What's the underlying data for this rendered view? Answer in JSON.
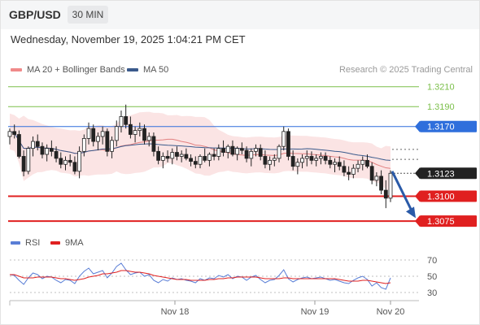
{
  "header": {
    "symbol": "GBP/USD",
    "timeframe": "30 MIN",
    "datetime": "Wednesday, November 19, 2025 1:04:21 PM CET"
  },
  "legend": {
    "ma20_label": "MA 20 + Bollinger Bands",
    "ma50_label": "MA 50",
    "credit": "Research © 2025 Trading Central",
    "rsi_label": "RSI",
    "rsi_ma_label": "9MA"
  },
  "colors": {
    "bull_candle": "#ffffff",
    "bear_candle": "#222222",
    "bollinger_fill": "#fbe4e4",
    "ma20": "#e28080",
    "ma50": "#3a5a8c",
    "resistance_green": "#7bbf4a",
    "pivot_blue": "#2f6fdc",
    "support_red": "#e02020",
    "arrow": "#2a5aa8",
    "rsi": "#5a7ed6",
    "rsi_ma": "#e02020"
  },
  "chart_data": [
    {
      "type": "candlestick",
      "title": "GBP/USD",
      "timeframe": "30 MIN",
      "x_ticks": [
        "Nov 18",
        "Nov 19",
        "Nov 20"
      ],
      "ylim": [
        1.3062,
        1.3222
      ],
      "levels": [
        {
          "label": "1.3210",
          "value": 1.321,
          "kind": "resistance"
        },
        {
          "label": "1.3190",
          "value": 1.319,
          "kind": "resistance"
        },
        {
          "label": "1.3170",
          "value": 1.317,
          "kind": "pivot"
        },
        {
          "label": "1.3123",
          "value": 1.3123,
          "kind": "last_price"
        },
        {
          "label": "1.3100",
          "value": 1.31,
          "kind": "support"
        },
        {
          "label": "1.3075",
          "value": 1.3075,
          "kind": "support"
        }
      ],
      "forecast_arrow": {
        "from": 1.3125,
        "to": 1.3078,
        "direction": "down"
      },
      "ohlc": [
        [
          1.316,
          1.3168,
          1.3152,
          1.3165
        ],
        [
          1.3165,
          1.3172,
          1.3158,
          1.3162
        ],
        [
          1.3162,
          1.3166,
          1.3138,
          1.314
        ],
        [
          1.314,
          1.3146,
          1.312,
          1.3125
        ],
        [
          1.3125,
          1.315,
          1.3122,
          1.3148
        ],
        [
          1.3148,
          1.316,
          1.314,
          1.3155
        ],
        [
          1.3155,
          1.3162,
          1.3146,
          1.315
        ],
        [
          1.315,
          1.3154,
          1.3138,
          1.3142
        ],
        [
          1.3142,
          1.3152,
          1.3135,
          1.3148
        ],
        [
          1.3148,
          1.3156,
          1.314,
          1.3145
        ],
        [
          1.3145,
          1.315,
          1.3134,
          1.3138
        ],
        [
          1.3138,
          1.3144,
          1.3128,
          1.3132
        ],
        [
          1.3132,
          1.314,
          1.3126,
          1.3136
        ],
        [
          1.3136,
          1.3142,
          1.313,
          1.3134
        ],
        [
          1.3134,
          1.314,
          1.3122,
          1.3125
        ],
        [
          1.3125,
          1.315,
          1.3118,
          1.3145
        ],
        [
          1.3145,
          1.3162,
          1.314,
          1.3158
        ],
        [
          1.3158,
          1.3174,
          1.3152,
          1.3168
        ],
        [
          1.3168,
          1.3172,
          1.315,
          1.3155
        ],
        [
          1.3155,
          1.3164,
          1.3146,
          1.316
        ],
        [
          1.316,
          1.317,
          1.3152,
          1.3165
        ],
        [
          1.3165,
          1.3168,
          1.314,
          1.3145
        ],
        [
          1.3145,
          1.316,
          1.3138,
          1.3156
        ],
        [
          1.3156,
          1.3176,
          1.315,
          1.317
        ],
        [
          1.317,
          1.3186,
          1.3164,
          1.318
        ],
        [
          1.318,
          1.3192,
          1.3168,
          1.3172
        ],
        [
          1.3172,
          1.318,
          1.3158,
          1.3162
        ],
        [
          1.3162,
          1.317,
          1.3154,
          1.3166
        ],
        [
          1.3166,
          1.3174,
          1.316,
          1.3168
        ],
        [
          1.3168,
          1.3172,
          1.3152,
          1.3156
        ],
        [
          1.3156,
          1.3164,
          1.315,
          1.316
        ],
        [
          1.316,
          1.3164,
          1.314,
          1.3145
        ],
        [
          1.3145,
          1.315,
          1.3132,
          1.3136
        ],
        [
          1.3136,
          1.3144,
          1.3128,
          1.314
        ],
        [
          1.314,
          1.3146,
          1.3134,
          1.3138
        ],
        [
          1.3138,
          1.3148,
          1.3132,
          1.3144
        ],
        [
          1.3144,
          1.315,
          1.3136,
          1.314
        ],
        [
          1.314,
          1.3146,
          1.3134,
          1.3142
        ],
        [
          1.3142,
          1.3148,
          1.3136,
          1.3138
        ],
        [
          1.3138,
          1.3142,
          1.313,
          1.3135
        ],
        [
          1.3135,
          1.314,
          1.3128,
          1.3132
        ],
        [
          1.3132,
          1.3142,
          1.3128,
          1.314
        ],
        [
          1.314,
          1.3148,
          1.3134,
          1.3136
        ],
        [
          1.3136,
          1.3144,
          1.313,
          1.3142
        ],
        [
          1.3142,
          1.3148,
          1.3136,
          1.314
        ],
        [
          1.314,
          1.3152,
          1.3136,
          1.3148
        ],
        [
          1.3148,
          1.3156,
          1.314,
          1.3144
        ],
        [
          1.3144,
          1.3152,
          1.3138,
          1.315
        ],
        [
          1.315,
          1.3156,
          1.314,
          1.3142
        ],
        [
          1.3142,
          1.315,
          1.3136,
          1.3148
        ],
        [
          1.3148,
          1.3154,
          1.3142,
          1.3146
        ],
        [
          1.3146,
          1.315,
          1.3134,
          1.3138
        ],
        [
          1.3138,
          1.3148,
          1.313,
          1.3145
        ],
        [
          1.3145,
          1.3152,
          1.314,
          1.3148
        ],
        [
          1.3148,
          1.3152,
          1.3136,
          1.314
        ],
        [
          1.314,
          1.3146,
          1.3128,
          1.3132
        ],
        [
          1.3132,
          1.314,
          1.3126,
          1.3136
        ],
        [
          1.3136,
          1.3142,
          1.313,
          1.3138
        ],
        [
          1.3138,
          1.3152,
          1.3134,
          1.315
        ],
        [
          1.315,
          1.317,
          1.3146,
          1.3165
        ],
        [
          1.3165,
          1.3168,
          1.3136,
          1.314
        ],
        [
          1.314,
          1.3146,
          1.3126,
          1.313
        ],
        [
          1.313,
          1.3138,
          1.3122,
          1.3134
        ],
        [
          1.3134,
          1.3142,
          1.3128,
          1.3138
        ],
        [
          1.3138,
          1.3146,
          1.313,
          1.314
        ],
        [
          1.314,
          1.3145,
          1.3132,
          1.3136
        ],
        [
          1.3136,
          1.3142,
          1.313,
          1.3138
        ],
        [
          1.3138,
          1.3144,
          1.3132,
          1.314
        ],
        [
          1.314,
          1.3144,
          1.3132,
          1.3136
        ],
        [
          1.3136,
          1.314,
          1.3128,
          1.3132
        ],
        [
          1.3132,
          1.3138,
          1.3124,
          1.3134
        ],
        [
          1.3134,
          1.314,
          1.3126,
          1.313
        ],
        [
          1.313,
          1.3136,
          1.312,
          1.3124
        ],
        [
          1.3124,
          1.313,
          1.3116,
          1.3122
        ],
        [
          1.3122,
          1.3132,
          1.3118,
          1.3128
        ],
        [
          1.3128,
          1.3136,
          1.3124,
          1.3132
        ],
        [
          1.3132,
          1.314,
          1.3126,
          1.3136
        ],
        [
          1.3136,
          1.3142,
          1.3128,
          1.313
        ],
        [
          1.313,
          1.3134,
          1.3112,
          1.3116
        ],
        [
          1.3116,
          1.3124,
          1.311,
          1.312
        ],
        [
          1.312,
          1.3126,
          1.3102,
          1.3106
        ],
        [
          1.3106,
          1.3116,
          1.3088,
          1.3098
        ],
        [
          1.3098,
          1.3126,
          1.3094,
          1.3123
        ]
      ]
    },
    {
      "type": "line",
      "title": "RSI",
      "ylim": [
        20,
        80
      ],
      "y_ticks": [
        70,
        50,
        30
      ],
      "series": [
        {
          "name": "RSI",
          "values": [
            52,
            51,
            45,
            40,
            48,
            54,
            52,
            47,
            50,
            49,
            45,
            42,
            46,
            45,
            41,
            50,
            56,
            60,
            53,
            55,
            57,
            48,
            54,
            62,
            66,
            58,
            52,
            54,
            55,
            50,
            52,
            45,
            42,
            46,
            44,
            48,
            46,
            47,
            45,
            44,
            42,
            47,
            45,
            48,
            47,
            51,
            49,
            52,
            47,
            50,
            49,
            45,
            49,
            51,
            46,
            42,
            45,
            46,
            51,
            58,
            47,
            43,
            46,
            48,
            49,
            47,
            48,
            49,
            47,
            45,
            46,
            44,
            42,
            41,
            45,
            48,
            50,
            46,
            38,
            42,
            36,
            34,
            48
          ]
        },
        {
          "name": "9MA",
          "values": [
            52,
            52,
            50,
            48,
            48,
            48,
            49,
            49,
            49,
            49,
            48,
            47,
            47,
            46,
            45,
            46,
            47,
            49,
            50,
            51,
            53,
            53,
            54,
            55,
            57,
            57,
            56,
            55,
            55,
            54,
            53,
            51,
            50,
            49,
            48,
            47,
            46,
            46,
            46,
            45,
            45,
            45,
            45,
            46,
            46,
            47,
            47,
            48,
            48,
            49,
            49,
            49,
            49,
            49,
            48,
            47,
            47,
            47,
            47,
            48,
            48,
            47,
            47,
            47,
            47,
            47,
            47,
            47,
            47,
            47,
            47,
            46,
            45,
            44,
            44,
            44,
            45,
            45,
            44,
            43,
            42,
            41,
            42
          ]
        }
      ]
    }
  ]
}
